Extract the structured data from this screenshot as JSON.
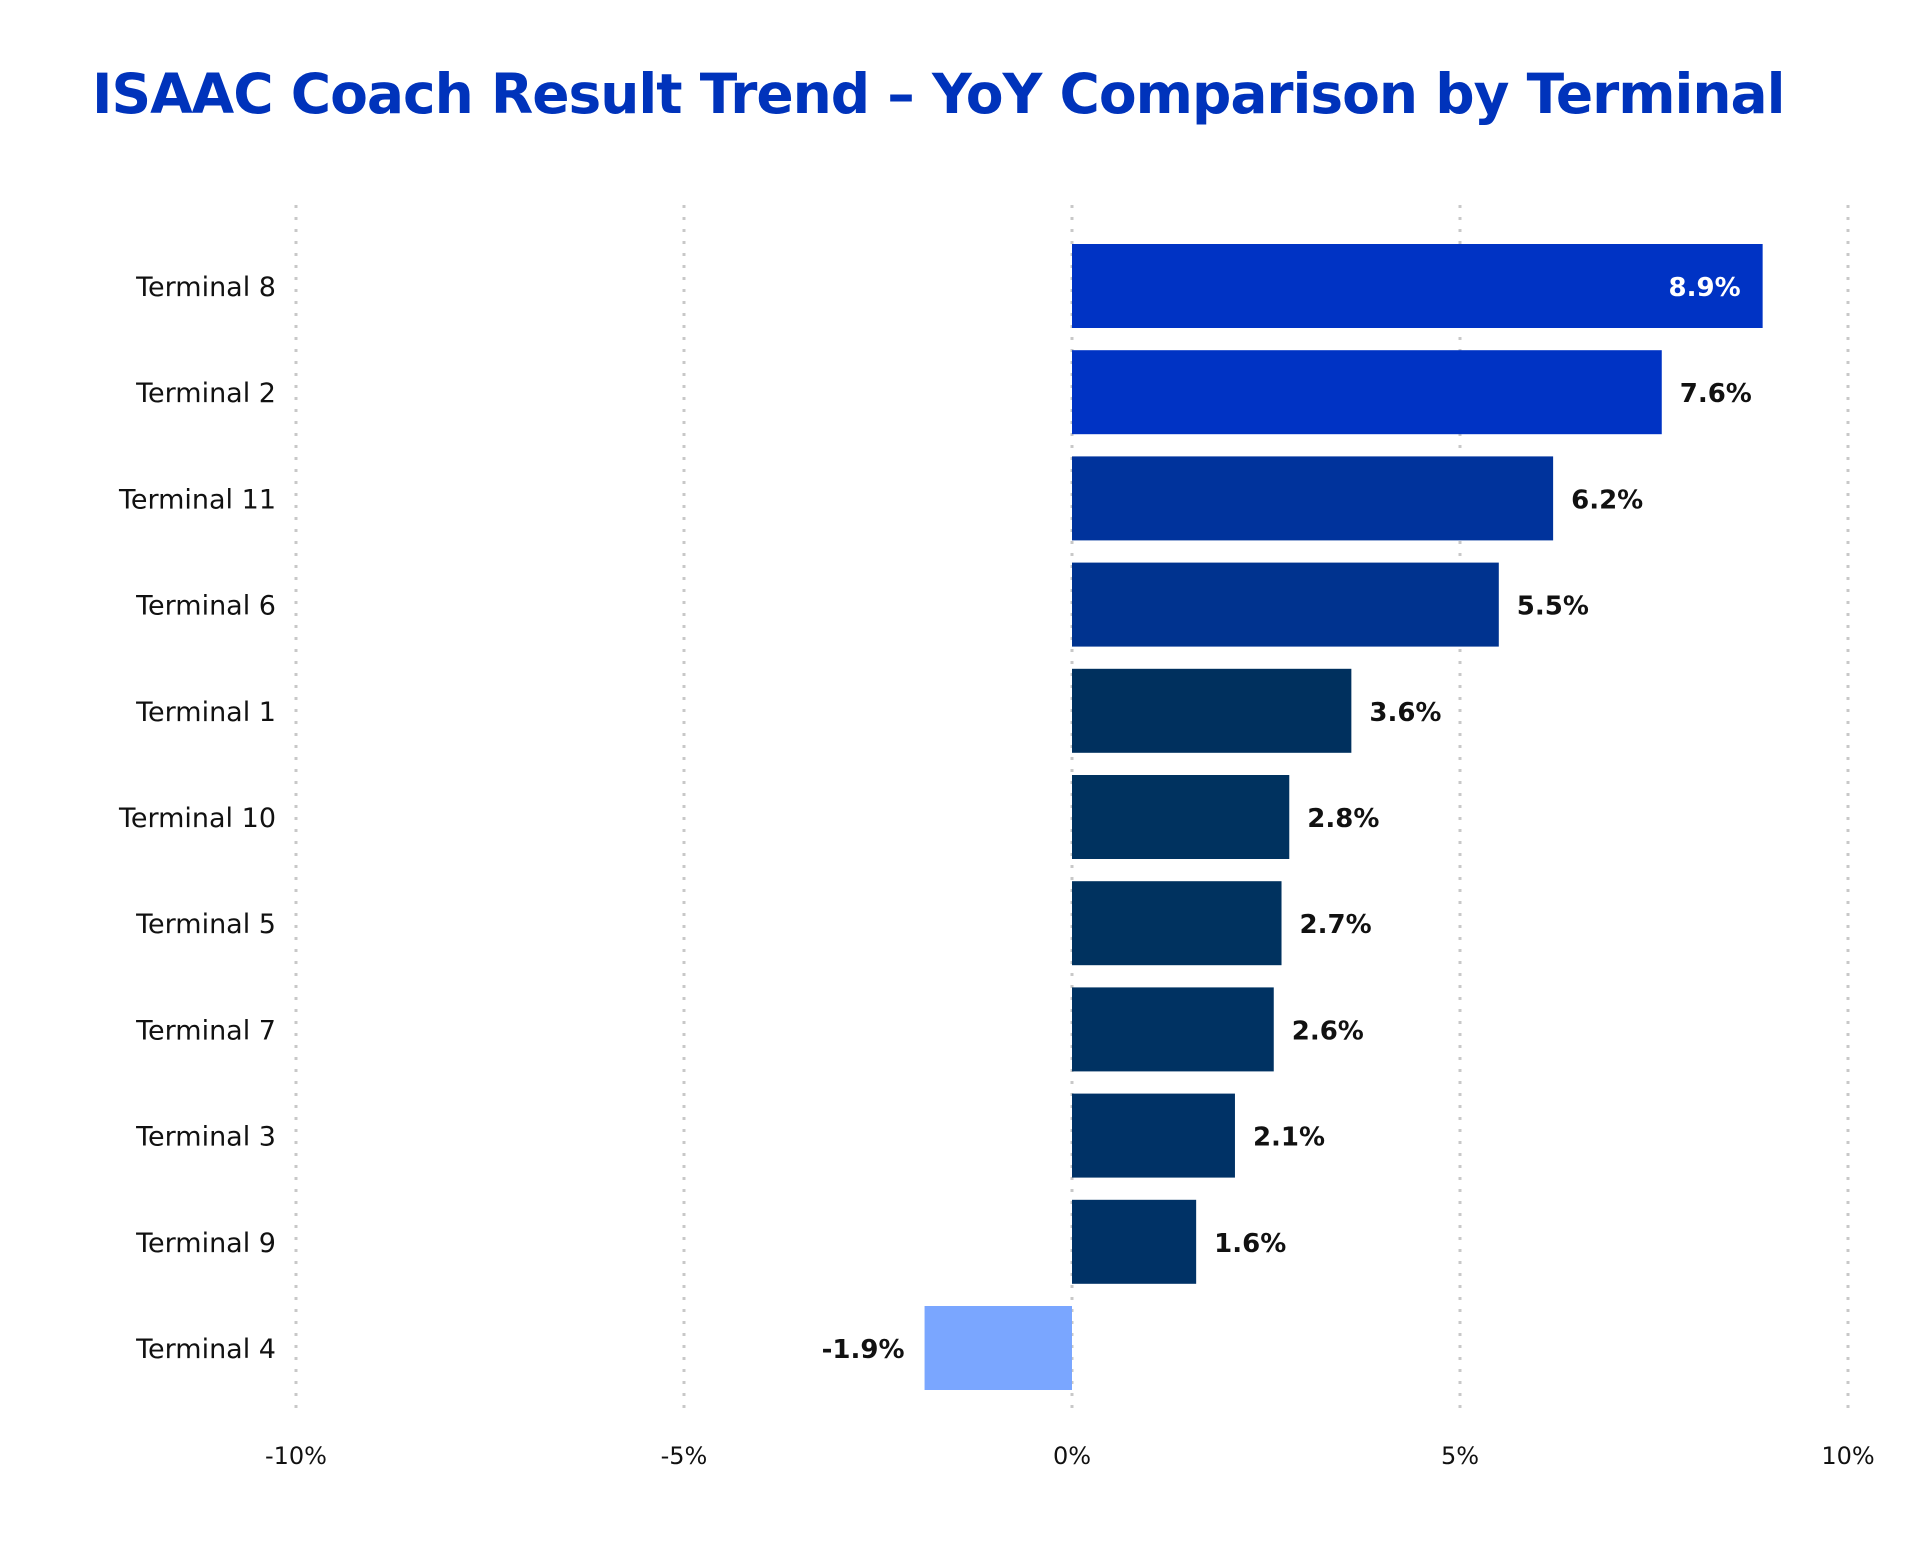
{
  "chart_data": {
    "type": "bar",
    "orientation": "horizontal",
    "title": "ISAAC Coach Result Trend – YoY Comparison by Terminal",
    "xlabel": "",
    "ylabel": "",
    "categories": [
      "Terminal 8",
      "Terminal 2",
      "Terminal 11",
      "Terminal 6",
      "Terminal 1",
      "Terminal 10",
      "Terminal 5",
      "Terminal 7",
      "Terminal 3",
      "Terminal 9",
      "Terminal 4"
    ],
    "values": [
      8.9,
      7.6,
      6.2,
      5.5,
      3.6,
      2.8,
      2.7,
      2.6,
      2.1,
      1.6,
      -1.9
    ],
    "data_labels": [
      "8.9%",
      "7.6%",
      "6.2%",
      "5.5%",
      "3.6%",
      "2.8%",
      "2.7%",
      "2.6%",
      "2.1%",
      "1.6%",
      "-1.9%"
    ],
    "bar_colors": [
      "#0033c4",
      "#0033c4",
      "#00339c",
      "#00338f",
      "#00305e",
      "#00325f",
      "#00325f",
      "#003262",
      "#003266",
      "#003266",
      "#7aa6ff"
    ],
    "label_colors": [
      "#ffffff",
      "#111111",
      "#111111",
      "#111111",
      "#111111",
      "#111111",
      "#111111",
      "#111111",
      "#111111",
      "#111111",
      "#111111"
    ],
    "xlim": [
      -10,
      10
    ],
    "x_ticks": [
      -10,
      -5,
      0,
      5,
      10
    ],
    "x_tick_labels": [
      "-10%",
      "-5%",
      "0%",
      "5%",
      "10%"
    ],
    "grid": "vertical-dotted",
    "legend": "none"
  }
}
